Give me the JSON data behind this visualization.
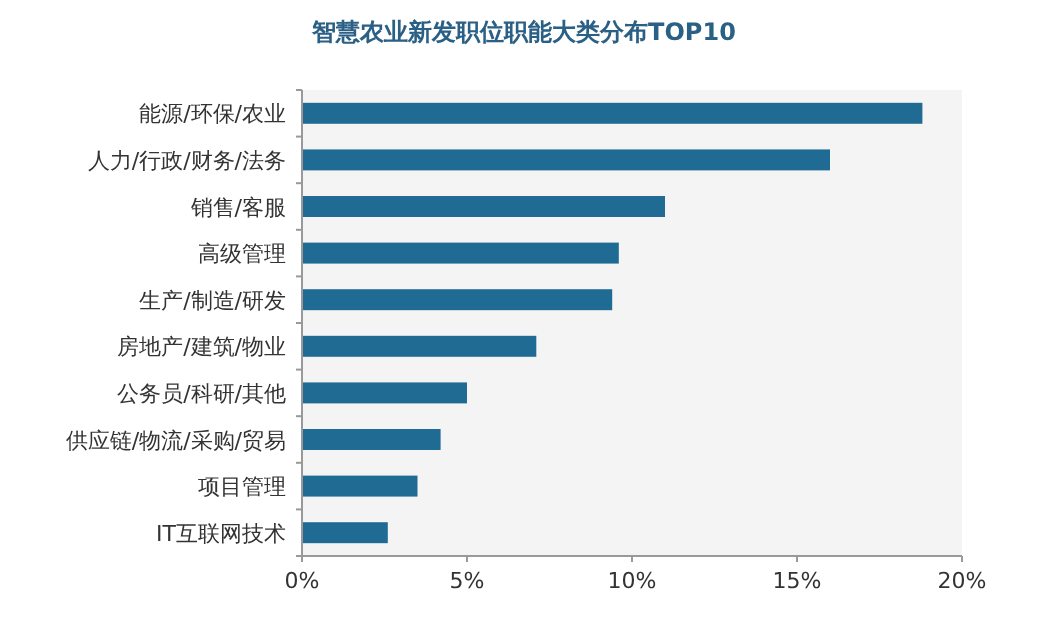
{
  "chart_data": {
    "type": "bar",
    "orientation": "horizontal",
    "title": "智慧农业新发职位职能大类分布TOP10",
    "categories": [
      "能源/环保/农业",
      "人力/行政/财务/法务",
      "销售/客服",
      "高级管理",
      "生产/制造/研发",
      "房地产/建筑/物业",
      "公务员/科研/其他",
      "供应链/物流/采购/贸易",
      "项目管理",
      "IT互联网技术"
    ],
    "values": [
      18.8,
      16.0,
      11.0,
      9.6,
      9.4,
      7.1,
      5.0,
      4.2,
      3.5,
      2.6
    ],
    "color": "#1f6b94",
    "xlim": [
      0,
      20
    ],
    "xticks": [
      {
        "value": 0,
        "label": "0%"
      },
      {
        "value": 5,
        "label": "5%"
      },
      {
        "value": 10,
        "label": "10%"
      },
      {
        "value": 15,
        "label": "15%"
      },
      {
        "value": 20,
        "label": "20%"
      }
    ],
    "grid": false
  }
}
